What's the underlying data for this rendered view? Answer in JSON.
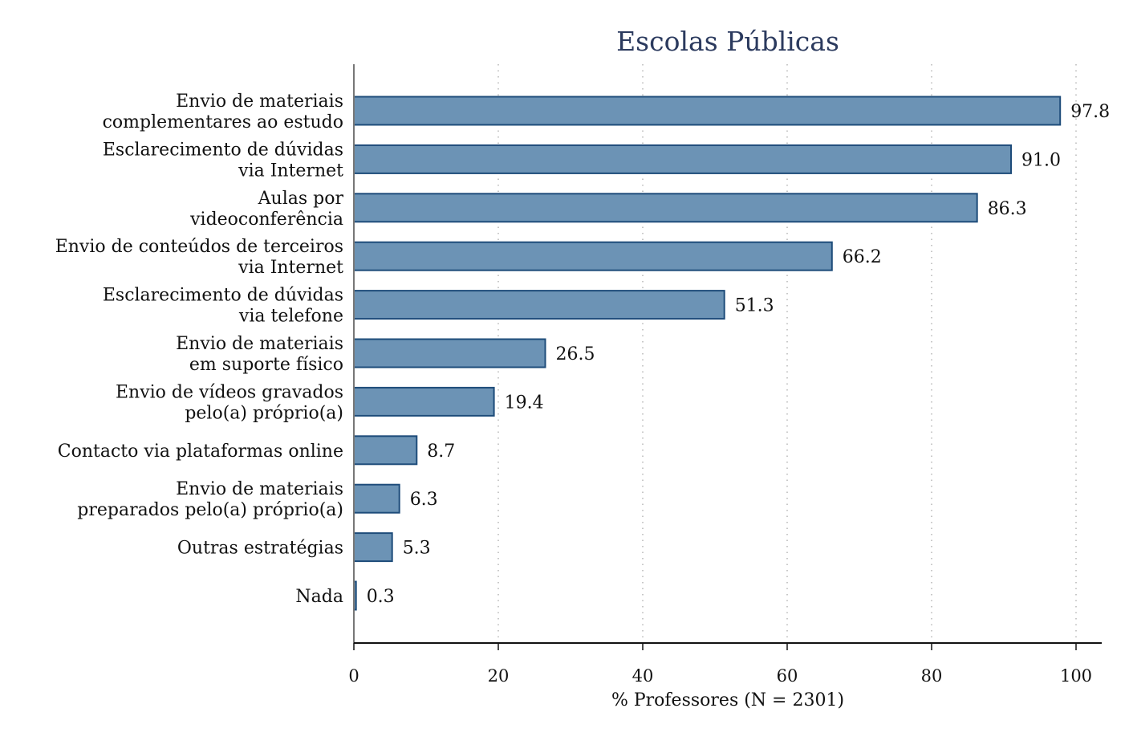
{
  "chart_data": {
    "type": "bar",
    "orientation": "horizontal",
    "title": "Escolas Públicas",
    "xlabel": "% Professores (N = 2301)",
    "ylabel": "",
    "xlim": [
      0,
      100
    ],
    "xticks": [
      0,
      20,
      40,
      60,
      80,
      100
    ],
    "grid": "vertical dotted",
    "bar_color": "#6c93b5",
    "bar_edge_color": "#1e4c7a",
    "categories": [
      [
        "Envio de materiais",
        "complementares ao estudo"
      ],
      [
        "Esclarecimento de dúvidas",
        "via Internet"
      ],
      [
        "Aulas por",
        "videoconferência"
      ],
      [
        "Envio de conteúdos de terceiros",
        "via Internet"
      ],
      [
        "Esclarecimento de dúvidas",
        "via telefone"
      ],
      [
        "Envio de materiais",
        "em suporte físico"
      ],
      [
        "Envio de vídeos gravados",
        "pelo(a) próprio(a)"
      ],
      [
        "Contacto via plataformas online"
      ],
      [
        "Envio de materiais",
        "preparados pelo(a) próprio(a)"
      ],
      [
        "Outras estratégias"
      ],
      [
        "Nada"
      ]
    ],
    "values": [
      97.8,
      91.0,
      86.3,
      66.2,
      51.3,
      26.5,
      19.4,
      8.7,
      6.3,
      5.3,
      0.3
    ],
    "value_labels": [
      "97.8",
      "91.0",
      "86.3",
      "66.2",
      "51.3",
      "26.5",
      "19.4",
      "8.7",
      "6.3",
      "5.3",
      "0.3"
    ]
  }
}
